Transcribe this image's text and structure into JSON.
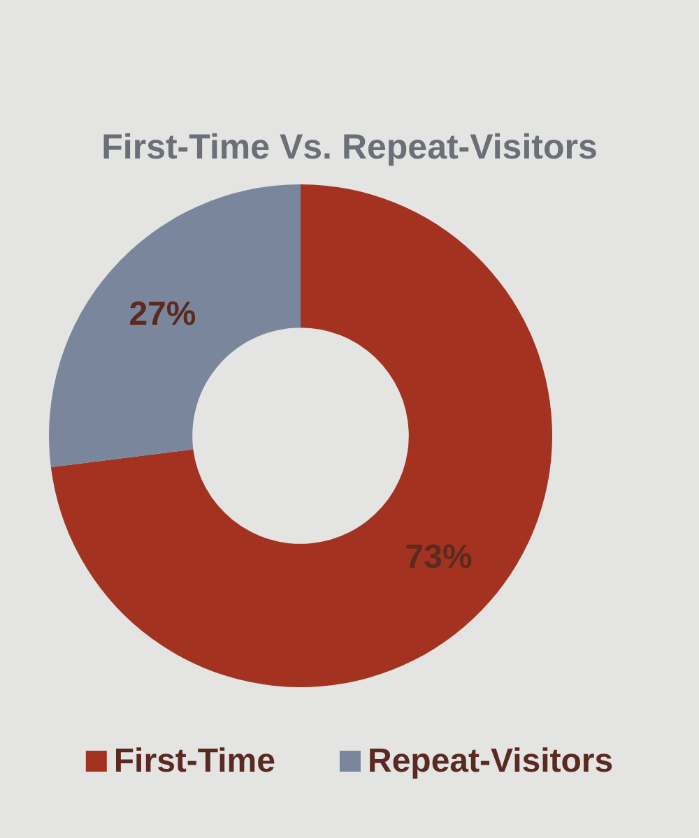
{
  "chart_data": {
    "type": "donut",
    "title": "First-Time Vs. Repeat-Visitors",
    "categories": [
      "First-Time",
      "Repeat-Visitors"
    ],
    "values": [
      73,
      27
    ],
    "colors": [
      "#a33320",
      "#7a869c"
    ],
    "value_labels": [
      "73%",
      "27%"
    ],
    "legend": "bottom"
  }
}
